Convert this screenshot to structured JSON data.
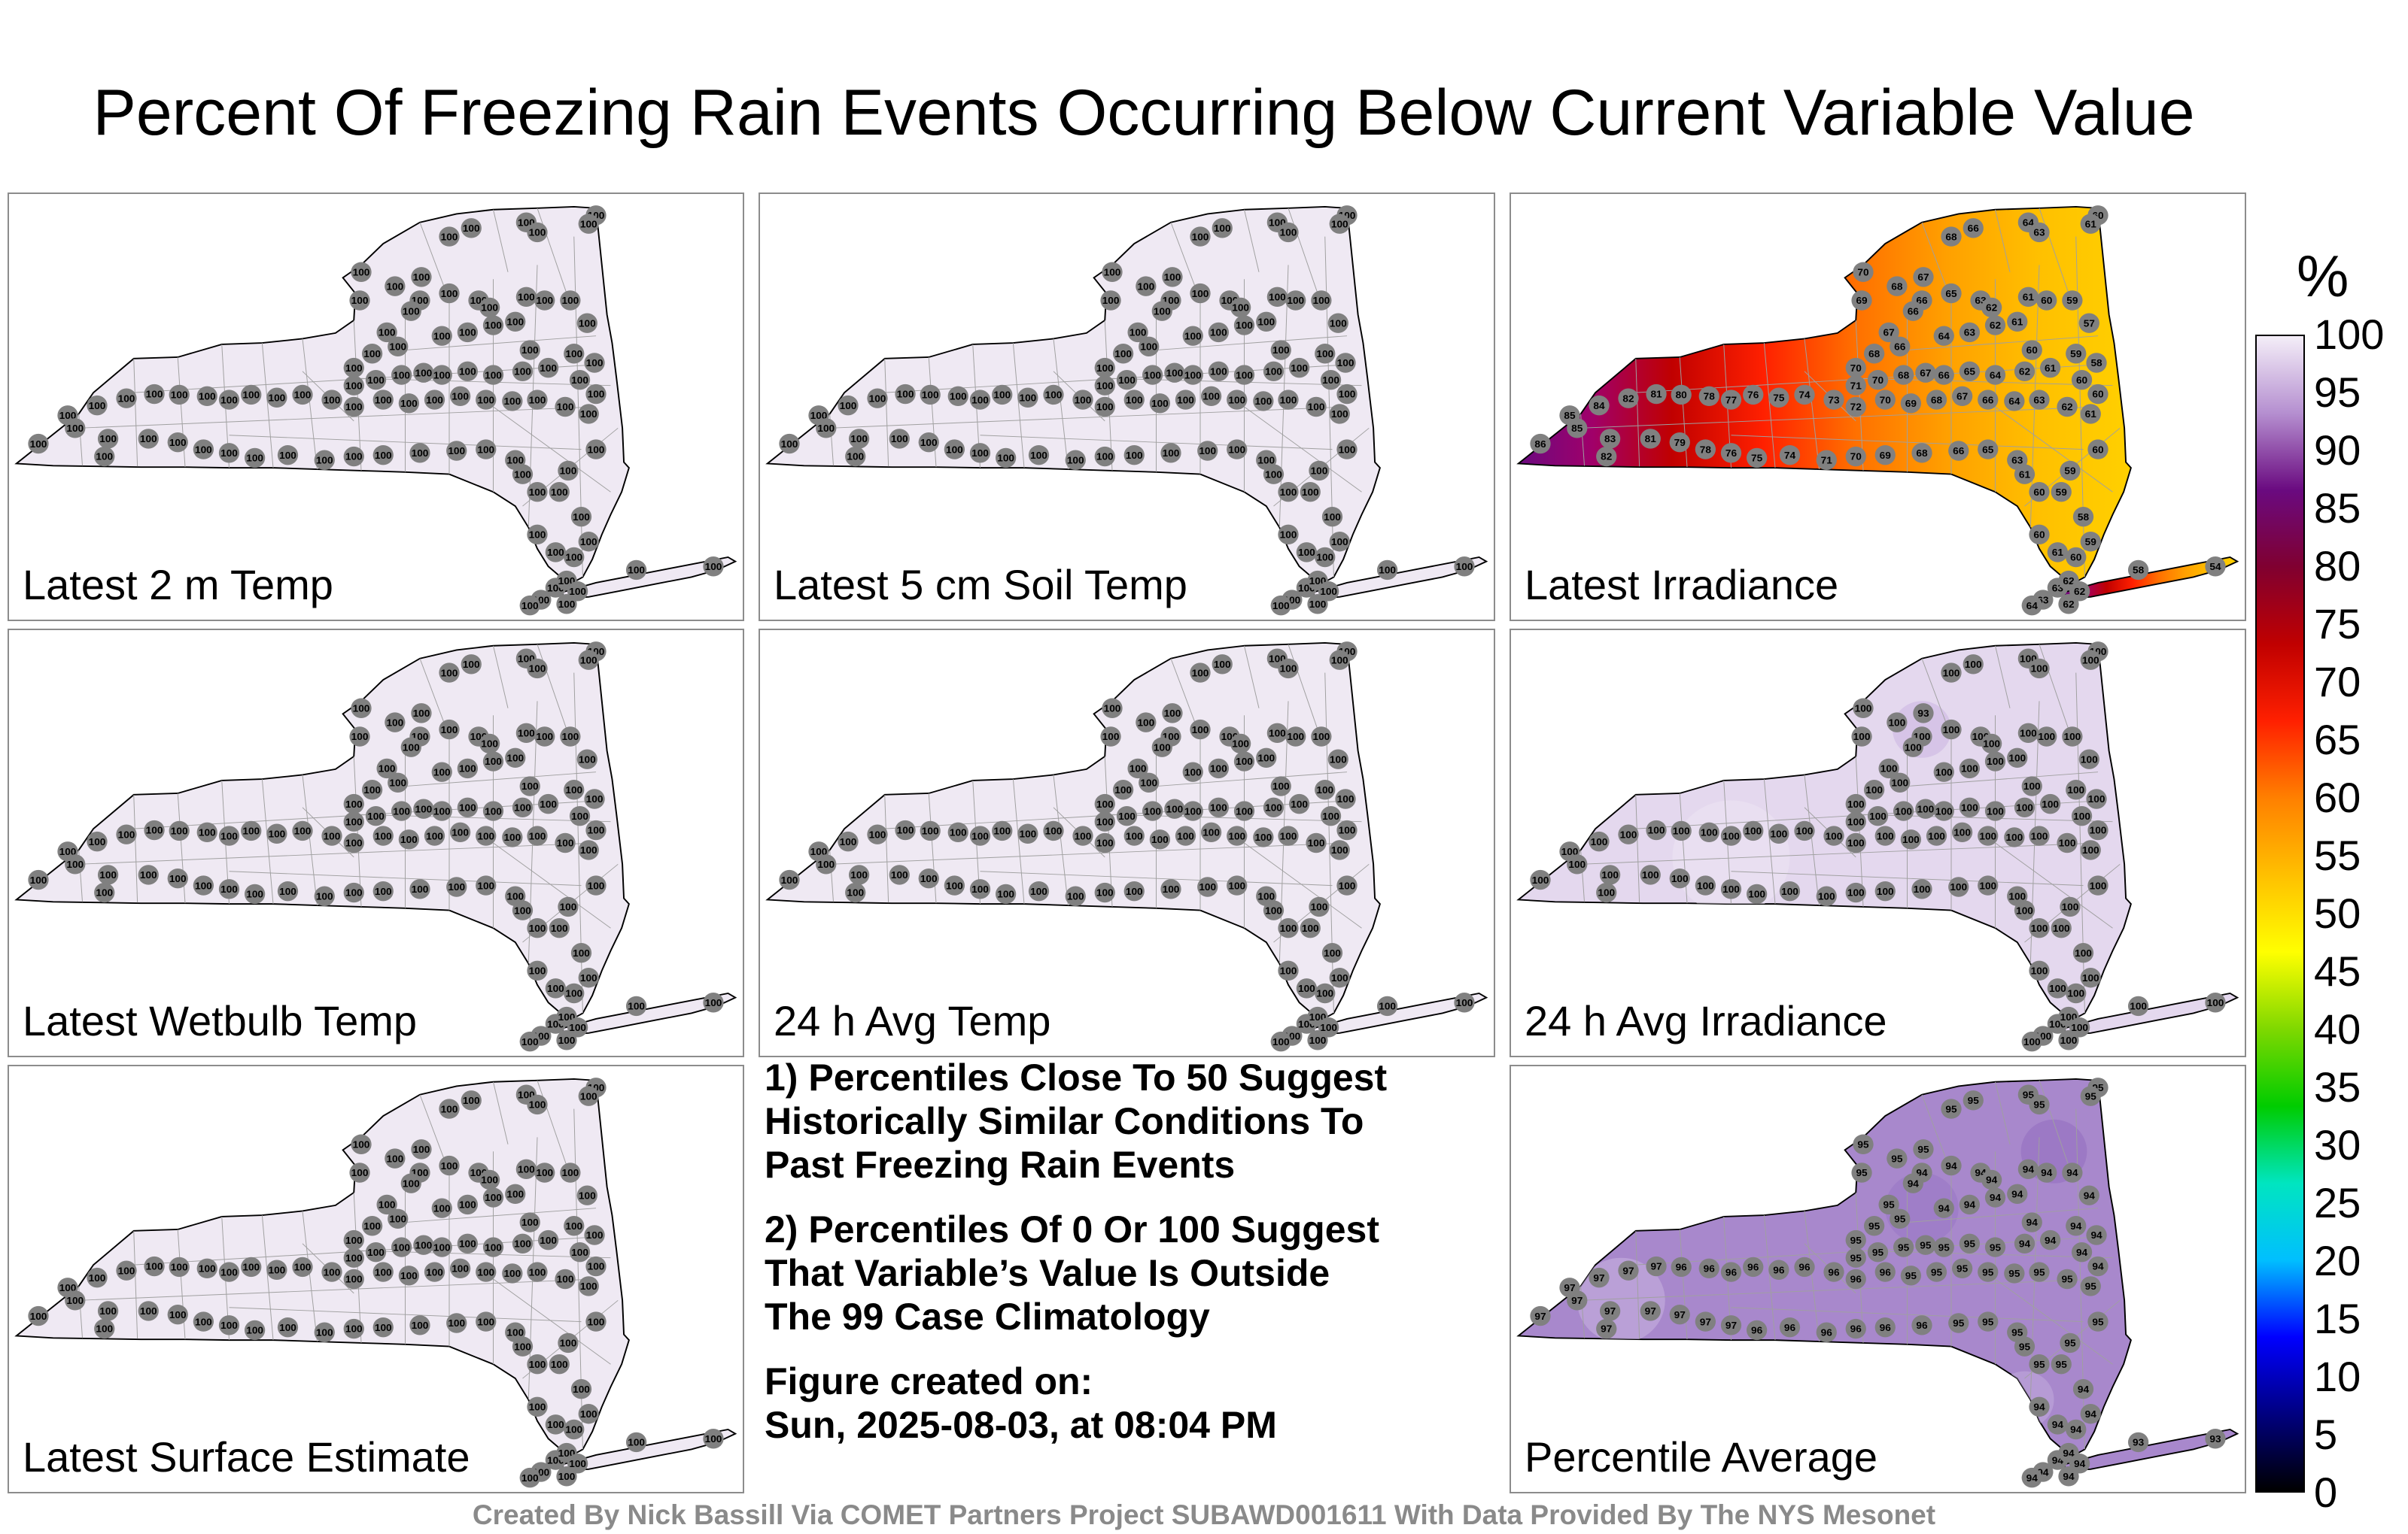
{
  "title": "Percent Of Freezing Rain Events Occurring Below Current Variable Value",
  "panels": [
    {
      "label": "Latest 2 m Temp",
      "mode": "uniform",
      "value": 100
    },
    {
      "label": "Latest 5 cm Soil Temp",
      "mode": "uniform",
      "value": 100
    },
    {
      "label": "Latest Irradiance",
      "mode": "irradiance",
      "value_range": [
        54,
        86
      ]
    },
    {
      "label": "Latest Wetbulb Temp",
      "mode": "uniform",
      "value": 100
    },
    {
      "label": "24 h Avg Temp",
      "mode": "uniform",
      "value": 100
    },
    {
      "label": "24 h Avg Irradiance",
      "mode": "avgirr",
      "note_value": 93
    },
    {
      "label": "Latest Surface Estimate",
      "mode": "uniform",
      "value": 100
    },
    {
      "label": "Percentile Average",
      "mode": "average",
      "value_range": [
        93,
        98
      ]
    }
  ],
  "notes": [
    "1) Percentiles Close To 50 Suggest\nHistorically Similar Conditions To\nPast Freezing Rain Events",
    "2) Percentiles Of 0 Or 100 Suggest\nThat Variable’s Value Is Outside\nThe 99 Case Climatology",
    "Figure created on:\nSun, 2025-08-03, at 08:04 PM"
  ],
  "colorbar": {
    "title": "%",
    "ticks": [
      "100",
      "95",
      "90",
      "85",
      "80",
      "75",
      "70",
      "65",
      "60",
      "55",
      "50",
      "45",
      "40",
      "35",
      "30",
      "25",
      "20",
      "15",
      "10",
      "5",
      "0"
    ],
    "colors": [
      "#000000",
      "#000080",
      "#0000ff",
      "#00bfff",
      "#00e5c0",
      "#00cc00",
      "#7fd800",
      "#ffff00",
      "#ffc000",
      "#ff8000",
      "#ff2000",
      "#c00000",
      "#800030",
      "#6a0a80",
      "#b58fd0",
      "#f4eef8"
    ]
  },
  "credit": "Created By Nick Bassill Via COMET Partners Project SUBAWD001611 With Data Provided By The NYS Mesonet",
  "map_style": {
    "uniform_fill": "#efe9f3",
    "avgirr_fill": "#e4d8ee",
    "average_fill": "#a888cc",
    "station_fill": "#808080",
    "county_line": "#a0a0a0"
  }
}
